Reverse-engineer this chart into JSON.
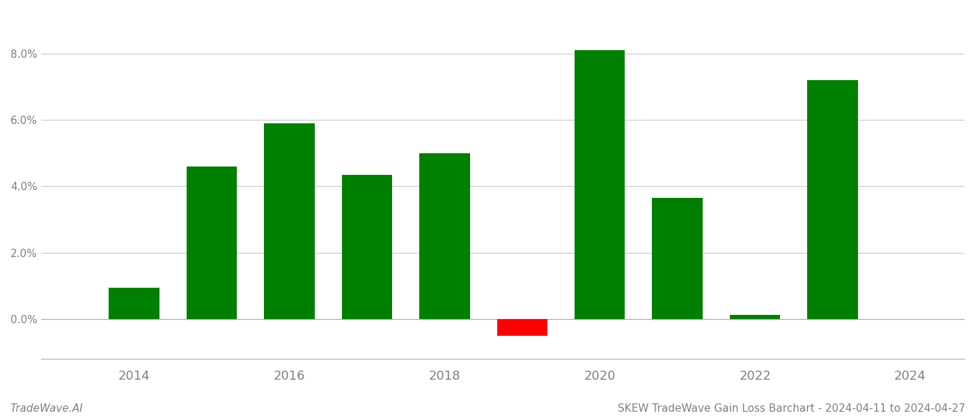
{
  "years": [
    2014,
    2015,
    2016,
    2017,
    2018,
    2019,
    2020,
    2021,
    2022,
    2023
  ],
  "values": [
    0.0095,
    0.046,
    0.059,
    0.0435,
    0.05,
    -0.005,
    0.081,
    0.0365,
    0.0012,
    0.072
  ],
  "bar_colors": [
    "#008000",
    "#008000",
    "#008000",
    "#008000",
    "#008000",
    "#ff0000",
    "#008000",
    "#008000",
    "#008000",
    "#008000"
  ],
  "title": "SKEW TradeWave Gain Loss Barchart - 2024-04-11 to 2024-04-27",
  "watermark": "TradeWave.AI",
  "ylim_min": -0.012,
  "ylim_max": 0.093,
  "background_color": "#ffffff",
  "grid_color": "#c8c8c8",
  "tick_label_color": "#808080",
  "bar_width": 0.65,
  "xlim_min": 2012.8,
  "xlim_max": 2024.7,
  "xticks": [
    2014,
    2016,
    2018,
    2020,
    2022,
    2024
  ],
  "xtick_labels": [
    "2014",
    "2016",
    "2018",
    "2020",
    "2022",
    "2024"
  ]
}
